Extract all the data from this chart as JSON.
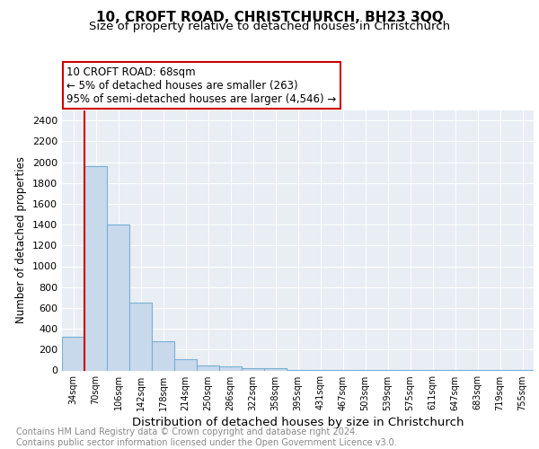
{
  "title": "10, CROFT ROAD, CHRISTCHURCH, BH23 3QQ",
  "subtitle": "Size of property relative to detached houses in Christchurch",
  "xlabel": "Distribution of detached houses by size in Christchurch",
  "ylabel": "Number of detached properties",
  "categories": [
    "34sqm",
    "70sqm",
    "106sqm",
    "142sqm",
    "178sqm",
    "214sqm",
    "250sqm",
    "286sqm",
    "322sqm",
    "358sqm",
    "395sqm",
    "431sqm",
    "467sqm",
    "503sqm",
    "539sqm",
    "575sqm",
    "611sqm",
    "647sqm",
    "683sqm",
    "719sqm",
    "755sqm"
  ],
  "values": [
    320,
    1960,
    1400,
    650,
    278,
    107,
    50,
    35,
    25,
    18,
    5,
    3,
    2,
    2,
    2,
    1,
    1,
    1,
    1,
    1,
    1
  ],
  "bar_color": "#c8d9eb",
  "bar_edge_color": "#7ab0d4",
  "vline_color": "#cc0000",
  "annotation_box_text": "10 CROFT ROAD: 68sqm\n← 5% of detached houses are smaller (263)\n95% of semi-detached houses are larger (4,546) →",
  "annotation_box_color": "#ffffff",
  "annotation_box_edge_color": "#cc0000",
  "ylim": [
    0,
    2500
  ],
  "yticks": [
    0,
    200,
    400,
    600,
    800,
    1000,
    1200,
    1400,
    1600,
    1800,
    2000,
    2200,
    2400
  ],
  "plot_background_color": "#e8eef4",
  "footer_text": "Contains HM Land Registry data © Crown copyright and database right 2024.\nContains public sector information licensed under the Open Government Licence v3.0.",
  "title_fontsize": 11,
  "subtitle_fontsize": 9.5,
  "xlabel_fontsize": 9.5,
  "ylabel_fontsize": 8.5,
  "footer_fontsize": 7,
  "annotation_fontsize": 8.5
}
